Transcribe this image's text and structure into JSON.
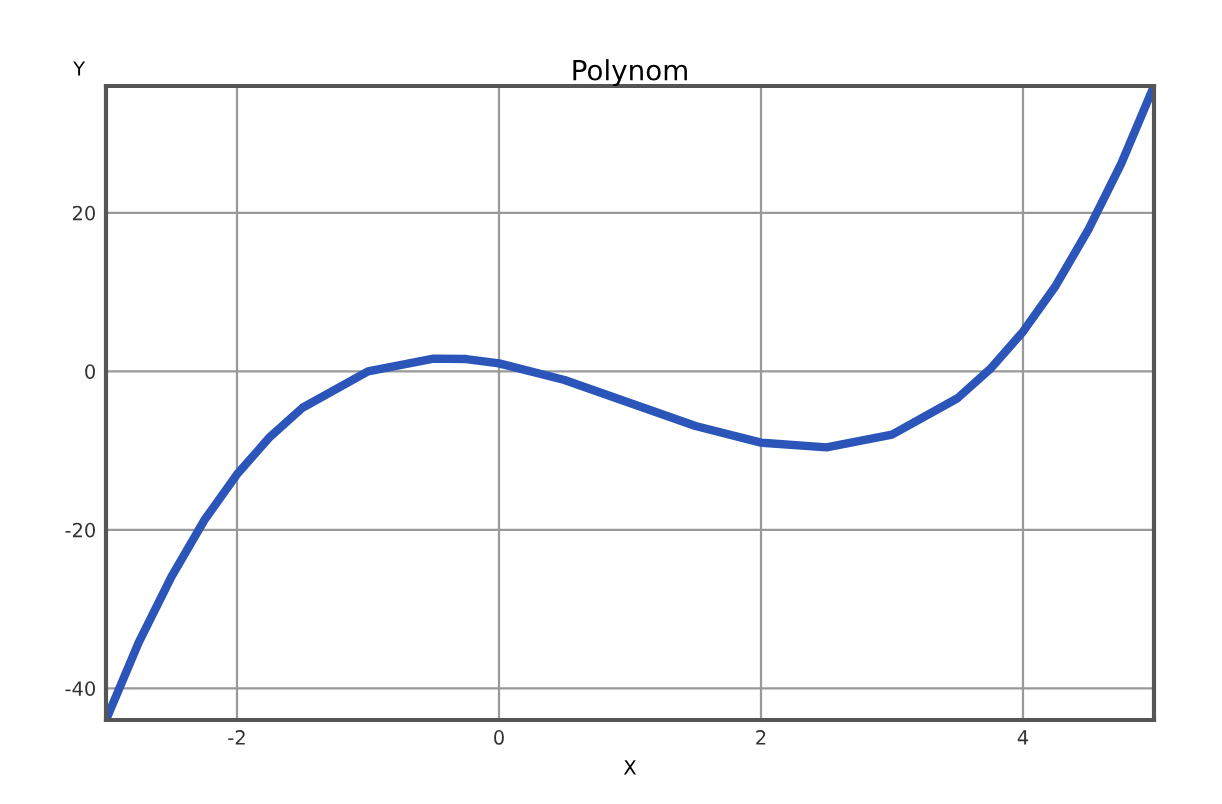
{
  "chart_data": {
    "type": "line",
    "title": "Polynom",
    "xlabel": "X",
    "ylabel": "Y",
    "x": [
      -3,
      -2.75,
      -2.5,
      -2.25,
      -2,
      -1.75,
      -1.5,
      -1,
      -0.5,
      -0.25,
      0,
      0.5,
      1,
      1.5,
      2,
      2.5,
      3,
      3.5,
      3.75,
      4,
      4.25,
      4.5,
      4.75,
      5
    ],
    "series": [
      {
        "color": "#2b55b8",
        "values": [
          -44,
          -34.2,
          -25.9,
          -18.8,
          -13,
          -8.3,
          -4.6,
          0,
          1.6,
          1.55,
          1,
          -1.1,
          -4,
          -6.9,
          -9,
          -9.6,
          -8,
          -3.4,
          0.3,
          5,
          10.8,
          17.9,
          26.2,
          36
        ]
      }
    ],
    "xlim": [
      -3,
      5
    ],
    "ylim": [
      -44,
      36
    ],
    "xticks": [
      -2,
      0,
      2,
      4
    ],
    "yticks": [
      -40,
      -20,
      0,
      20
    ],
    "grid": true,
    "legend": false,
    "marker": "none",
    "line_style": "solid"
  }
}
